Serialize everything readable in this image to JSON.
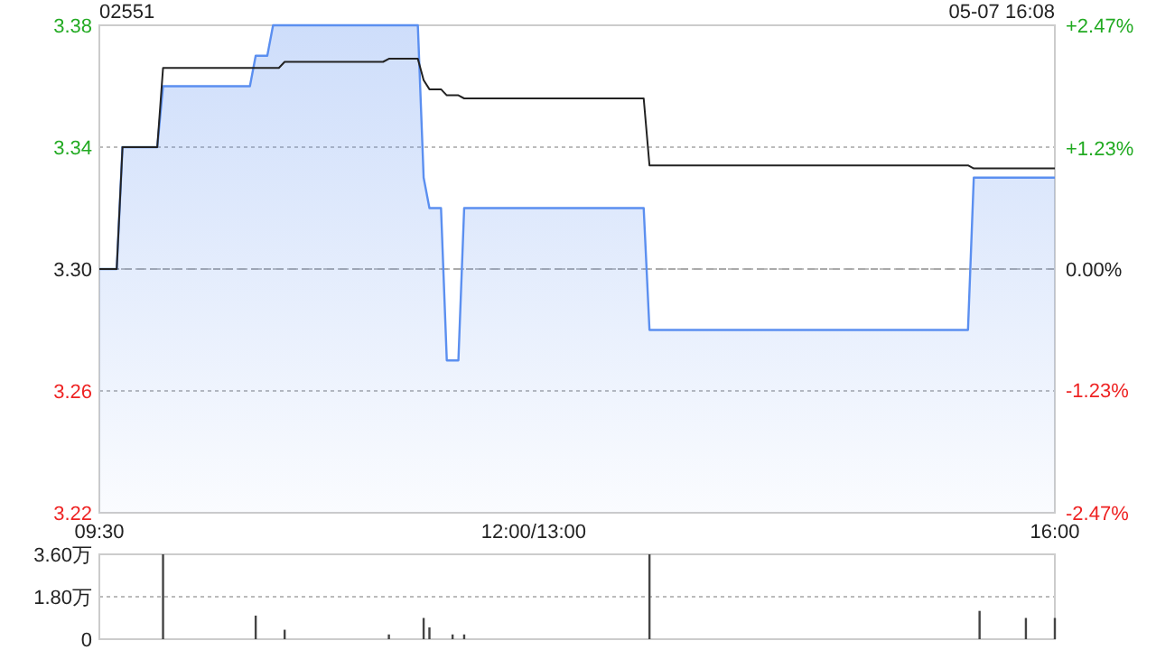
{
  "chart_data": [
    {
      "type": "line",
      "title": "02551",
      "annotations": [
        "05-07 16:08"
      ],
      "categories": [
        "09:30",
        null,
        null,
        null,
        null,
        null,
        null,
        null,
        null,
        null,
        null,
        null,
        null,
        null,
        null,
        null,
        null,
        null,
        null,
        null,
        null,
        null,
        null,
        null,
        null,
        null,
        null,
        null,
        null,
        null,
        null,
        null,
        null,
        null,
        null,
        null,
        null,
        null,
        null,
        null,
        null,
        null,
        null,
        null,
        null,
        null,
        null,
        null,
        null,
        null,
        null,
        null,
        null,
        null,
        null,
        null,
        null,
        null,
        null,
        null,
        null,
        null,
        null,
        null,
        null,
        null,
        null,
        null,
        null,
        null,
        null,
        null,
        null,
        null,
        null,
        "12:00/13:00",
        null,
        null,
        null,
        null,
        null,
        null,
        null,
        null,
        null,
        null,
        null,
        null,
        null,
        null,
        null,
        null,
        null,
        null,
        null,
        null,
        null,
        null,
        null,
        null,
        null,
        null,
        null,
        null,
        null,
        null,
        null,
        null,
        null,
        null,
        null,
        null,
        null,
        null,
        null,
        null,
        null,
        null,
        null,
        null,
        null,
        null,
        null,
        null,
        null,
        null,
        null,
        null,
        null,
        null,
        null,
        null,
        null,
        null,
        null,
        null,
        null,
        null,
        null,
        null,
        null,
        null,
        null,
        null,
        null,
        null,
        null,
        null,
        null,
        null,
        null,
        null,
        null,
        null,
        null,
        null,
        null,
        null,
        null,
        null,
        null,
        null,
        null,
        null,
        null,
        "16:00"
      ],
      "series": [
        {
          "type": "area",
          "color": "#5b8ff0",
          "values": [
            3.3,
            3.3,
            3.3,
            3.3,
            3.34,
            3.34,
            3.34,
            3.34,
            3.34,
            3.34,
            3.34,
            3.36,
            3.36,
            3.36,
            3.36,
            3.36,
            3.36,
            3.36,
            3.36,
            3.36,
            3.36,
            3.36,
            3.36,
            3.36,
            3.36,
            3.36,
            3.36,
            3.37,
            3.37,
            3.37,
            3.38,
            3.38,
            3.38,
            3.38,
            3.38,
            3.38,
            3.38,
            3.38,
            3.38,
            3.38,
            3.38,
            3.38,
            3.38,
            3.38,
            3.38,
            3.38,
            3.38,
            3.38,
            3.38,
            3.38,
            3.38,
            3.38,
            3.38,
            3.38,
            3.38,
            3.38,
            3.33,
            3.32,
            3.32,
            3.32,
            3.27,
            3.27,
            3.27,
            3.32,
            3.32,
            3.32,
            3.32,
            3.32,
            3.32,
            3.32,
            3.32,
            3.32,
            3.32,
            3.32,
            3.32,
            3.32,
            3.32,
            3.32,
            3.32,
            3.32,
            3.32,
            3.32,
            3.32,
            3.32,
            3.32,
            3.32,
            3.32,
            3.32,
            3.32,
            3.32,
            3.32,
            3.32,
            3.32,
            3.32,
            3.32,
            3.28,
            3.28,
            3.28,
            3.28,
            3.28,
            3.28,
            3.28,
            3.28,
            3.28,
            3.28,
            3.28,
            3.28,
            3.28,
            3.28,
            3.28,
            3.28,
            3.28,
            3.28,
            3.28,
            3.28,
            3.28,
            3.28,
            3.28,
            3.28,
            3.28,
            3.28,
            3.28,
            3.28,
            3.28,
            3.28,
            3.28,
            3.28,
            3.28,
            3.28,
            3.28,
            3.28,
            3.28,
            3.28,
            3.28,
            3.28,
            3.28,
            3.28,
            3.28,
            3.28,
            3.28,
            3.28,
            3.28,
            3.28,
            3.28,
            3.28,
            3.28,
            3.28,
            3.28,
            3.28,
            3.28,
            3.28,
            3.33,
            3.33,
            3.33,
            3.33,
            3.33,
            3.33,
            3.33,
            3.33,
            3.33,
            3.33,
            3.33,
            3.33,
            3.33,
            3.33,
            3.33
          ]
        },
        {
          "color": "#222222",
          "values": [
            3.3,
            3.3,
            3.3,
            3.3,
            3.34,
            3.34,
            3.34,
            3.34,
            3.34,
            3.34,
            3.34,
            3.366,
            3.366,
            3.366,
            3.366,
            3.366,
            3.366,
            3.366,
            3.366,
            3.366,
            3.366,
            3.366,
            3.366,
            3.366,
            3.366,
            3.366,
            3.366,
            3.366,
            3.366,
            3.366,
            3.366,
            3.366,
            3.368,
            3.368,
            3.368,
            3.368,
            3.368,
            3.368,
            3.368,
            3.368,
            3.368,
            3.368,
            3.368,
            3.368,
            3.368,
            3.368,
            3.368,
            3.368,
            3.368,
            3.368,
            3.369,
            3.369,
            3.369,
            3.369,
            3.369,
            3.369,
            3.362,
            3.359,
            3.359,
            3.359,
            3.357,
            3.357,
            3.357,
            3.356,
            3.356,
            3.356,
            3.356,
            3.356,
            3.356,
            3.356,
            3.356,
            3.356,
            3.356,
            3.356,
            3.356,
            3.356,
            3.356,
            3.356,
            3.356,
            3.356,
            3.356,
            3.356,
            3.356,
            3.356,
            3.356,
            3.356,
            3.356,
            3.356,
            3.356,
            3.356,
            3.356,
            3.356,
            3.356,
            3.356,
            3.356,
            3.334,
            3.334,
            3.334,
            3.334,
            3.334,
            3.334,
            3.334,
            3.334,
            3.334,
            3.334,
            3.334,
            3.334,
            3.334,
            3.334,
            3.334,
            3.334,
            3.334,
            3.334,
            3.334,
            3.334,
            3.334,
            3.334,
            3.334,
            3.334,
            3.334,
            3.334,
            3.334,
            3.334,
            3.334,
            3.334,
            3.334,
            3.334,
            3.334,
            3.334,
            3.334,
            3.334,
            3.334,
            3.334,
            3.334,
            3.334,
            3.334,
            3.334,
            3.334,
            3.334,
            3.334,
            3.334,
            3.334,
            3.334,
            3.334,
            3.334,
            3.334,
            3.334,
            3.334,
            3.334,
            3.334,
            3.334,
            3.333,
            3.333,
            3.333,
            3.333,
            3.333,
            3.333,
            3.333,
            3.333,
            3.333,
            3.333,
            3.333,
            3.333,
            3.333,
            3.333,
            3.333
          ]
        }
      ],
      "ylim": [
        3.22,
        3.38
      ],
      "yticks": [
        {
          "value": 3.22,
          "label": "3.22"
        },
        {
          "value": 3.26,
          "label": "3.26"
        },
        {
          "value": 3.3,
          "label": "3.30"
        },
        {
          "value": 3.34,
          "label": "3.34"
        },
        {
          "value": 3.38,
          "label": "3.38"
        }
      ],
      "y2lim": [
        -2.47,
        2.47
      ],
      "y2ticks": [
        {
          "value": -2.47,
          "label": "-2.47%"
        },
        {
          "value": -1.23,
          "label": "-1.23%"
        },
        {
          "value": 0,
          "label": "0.00%"
        },
        {
          "value": 1.23,
          "label": "+1.23%"
        },
        {
          "value": 2.47,
          "label": "+2.47%"
        }
      ],
      "grid": "y",
      "ref_lines": [
        {
          "axis": "y",
          "value": 3.3,
          "label": null,
          "color": "#aaaaaa",
          "line_style": "dashed"
        }
      ]
    },
    {
      "type": "bar",
      "color": "#444444",
      "categories": [
        null,
        null,
        null,
        null,
        null,
        null,
        null,
        null,
        null,
        null,
        null,
        null,
        null,
        null,
        null,
        null,
        null,
        null,
        null,
        null,
        null,
        null,
        null,
        null,
        null,
        null,
        null,
        null,
        null,
        null,
        null,
        null,
        null,
        null,
        null,
        null,
        null,
        null,
        null,
        null,
        null,
        null,
        null,
        null,
        null,
        null,
        null,
        null,
        null,
        null,
        null,
        null,
        null,
        null,
        null,
        null,
        null,
        null,
        null,
        null,
        null,
        null,
        null,
        null,
        null,
        null,
        null,
        null,
        null,
        null,
        null,
        null,
        null,
        null,
        null,
        null,
        null,
        null,
        null,
        null,
        null,
        null,
        null,
        null,
        null,
        null,
        null,
        null,
        null,
        null,
        null,
        null,
        null,
        null,
        null,
        null,
        null,
        null,
        null,
        null,
        null,
        null,
        null,
        null,
        null,
        null,
        null,
        null,
        null,
        null,
        null,
        null,
        null,
        null,
        null,
        null,
        null,
        null,
        null,
        null,
        null,
        null,
        null,
        null,
        null,
        null,
        null,
        null,
        null,
        null,
        null,
        null,
        null,
        null,
        null,
        null,
        null,
        null,
        null,
        null,
        null,
        null,
        null,
        null,
        null,
        null,
        null,
        null,
        null,
        null,
        null,
        null,
        null,
        null,
        null,
        null,
        null,
        null,
        null,
        null,
        null,
        null,
        null,
        null,
        null,
        null
      ],
      "values": [
        null,
        null,
        null,
        null,
        null,
        null,
        null,
        null,
        null,
        null,
        null,
        3.6,
        null,
        null,
        null,
        null,
        null,
        null,
        null,
        null,
        null,
        null,
        null,
        null,
        null,
        null,
        null,
        1.0,
        null,
        null,
        null,
        null,
        0.4,
        null,
        null,
        null,
        null,
        null,
        null,
        null,
        null,
        null,
        null,
        null,
        null,
        null,
        null,
        null,
        null,
        null,
        0.2,
        null,
        null,
        null,
        null,
        null,
        0.9,
        0.5,
        null,
        null,
        null,
        0.2,
        null,
        0.2,
        null,
        null,
        null,
        null,
        null,
        null,
        null,
        null,
        null,
        null,
        null,
        null,
        null,
        null,
        null,
        null,
        null,
        null,
        null,
        null,
        null,
        null,
        null,
        null,
        null,
        null,
        null,
        null,
        null,
        null,
        null,
        3.6,
        null,
        null,
        null,
        null,
        null,
        null,
        null,
        null,
        null,
        null,
        null,
        null,
        null,
        null,
        null,
        null,
        null,
        null,
        null,
        null,
        null,
        null,
        null,
        null,
        null,
        null,
        null,
        null,
        null,
        null,
        null,
        null,
        null,
        null,
        null,
        null,
        null,
        null,
        null,
        null,
        null,
        null,
        null,
        null,
        null,
        null,
        null,
        null,
        null,
        null,
        null,
        null,
        null,
        null,
        null,
        null,
        1.2,
        null,
        null,
        null,
        null,
        null,
        null,
        null,
        0.9,
        null,
        null,
        null,
        null,
        0.9
      ],
      "ylim": [
        0,
        3.6
      ],
      "yticks": [
        {
          "value": 0,
          "label": "0"
        },
        {
          "value": 1.8,
          "label": "1.80万"
        },
        {
          "value": 3.6,
          "label": "3.60万"
        }
      ],
      "grid": "y",
      "tick_labels": "y"
    }
  ]
}
